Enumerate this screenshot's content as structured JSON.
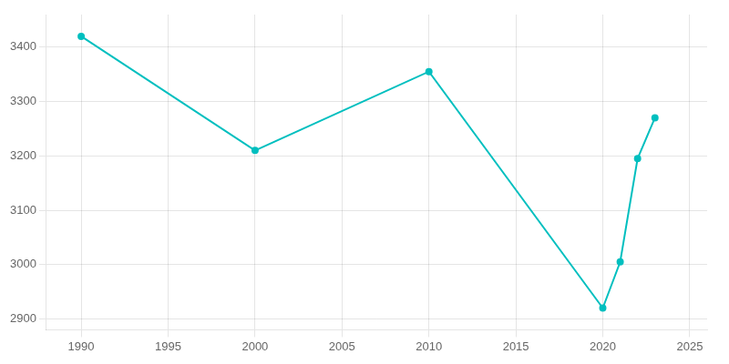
{
  "chart_data": {
    "type": "line",
    "x": [
      1990,
      2000,
      2010,
      2020,
      2021,
      2022,
      2023
    ],
    "values": [
      3420,
      3210,
      3355,
      2920,
      3005,
      3195,
      3270
    ],
    "color": "#00BFBF",
    "marker": "circle",
    "xlim": [
      1988,
      2026
    ],
    "ylim": [
      2880,
      3460
    ],
    "xticks": [
      1990,
      1995,
      2000,
      2005,
      2010,
      2015,
      2020,
      2025
    ],
    "yticks": [
      2900,
      3000,
      3100,
      3200,
      3300,
      3400
    ],
    "grid": true
  }
}
